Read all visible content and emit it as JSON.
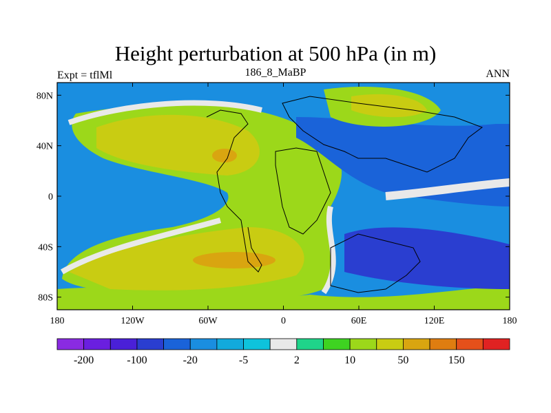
{
  "chart_data": {
    "type": "heatmap",
    "title": "Height perturbation at 500 hPa (in m)",
    "subtitle_center": "186_8_MaBP",
    "subtitle_left": "Expt = tflMl",
    "subtitle_right": "ANN",
    "x_axis": {
      "label": "",
      "ticks": [
        {
          "value": -180,
          "label": "180"
        },
        {
          "value": -120,
          "label": "120W"
        },
        {
          "value": -60,
          "label": "60W"
        },
        {
          "value": 0,
          "label": "0"
        },
        {
          "value": 60,
          "label": "60E"
        },
        {
          "value": 120,
          "label": "120E"
        },
        {
          "value": 180,
          "label": "180"
        }
      ],
      "range": [
        -180,
        180
      ]
    },
    "y_axis": {
      "label": "",
      "ticks": [
        {
          "value": 80,
          "label": "80N"
        },
        {
          "value": 40,
          "label": "40N"
        },
        {
          "value": 0,
          "label": "0"
        },
        {
          "value": -40,
          "label": "40S"
        },
        {
          "value": -80,
          "label": "80S"
        }
      ],
      "range": [
        -90,
        90
      ]
    },
    "colorbar": {
      "colors": [
        "#8a2be2",
        "#6a1fe0",
        "#4a20d8",
        "#2a3ed0",
        "#1a63d9",
        "#1a8ee0",
        "#12aadc",
        "#0ec3dc",
        "#e9e9e9",
        "#1fd48a",
        "#3ed321",
        "#9cd81a",
        "#c9cc12",
        "#d9a510",
        "#df7d10",
        "#e5501a",
        "#e02222"
      ],
      "labels": [
        {
          "index": 1,
          "text": "-200"
        },
        {
          "index": 3,
          "text": "-100"
        },
        {
          "index": 5,
          "text": "-20"
        },
        {
          "index": 7,
          "text": "-5"
        },
        {
          "index": 9,
          "text": "2"
        },
        {
          "index": 11,
          "text": "10"
        },
        {
          "index": 13,
          "text": "50"
        },
        {
          "index": 15,
          "text": "150"
        }
      ]
    },
    "field_regions": [
      {
        "name": "north-pacific-low",
        "color": "#1a8ee0"
      },
      {
        "name": "atlantic-americas-high",
        "color": "#9cd81a"
      },
      {
        "name": "north-atlantic-core",
        "color": "#c9cc12"
      },
      {
        "name": "south-atlantic-core",
        "color": "#c9cc12"
      },
      {
        "name": "eurasia-low",
        "color": "#1a63d9"
      },
      {
        "name": "arctic-high",
        "color": "#9cd81a"
      },
      {
        "name": "south-indian-low",
        "color": "#2a3ed0"
      }
    ]
  }
}
